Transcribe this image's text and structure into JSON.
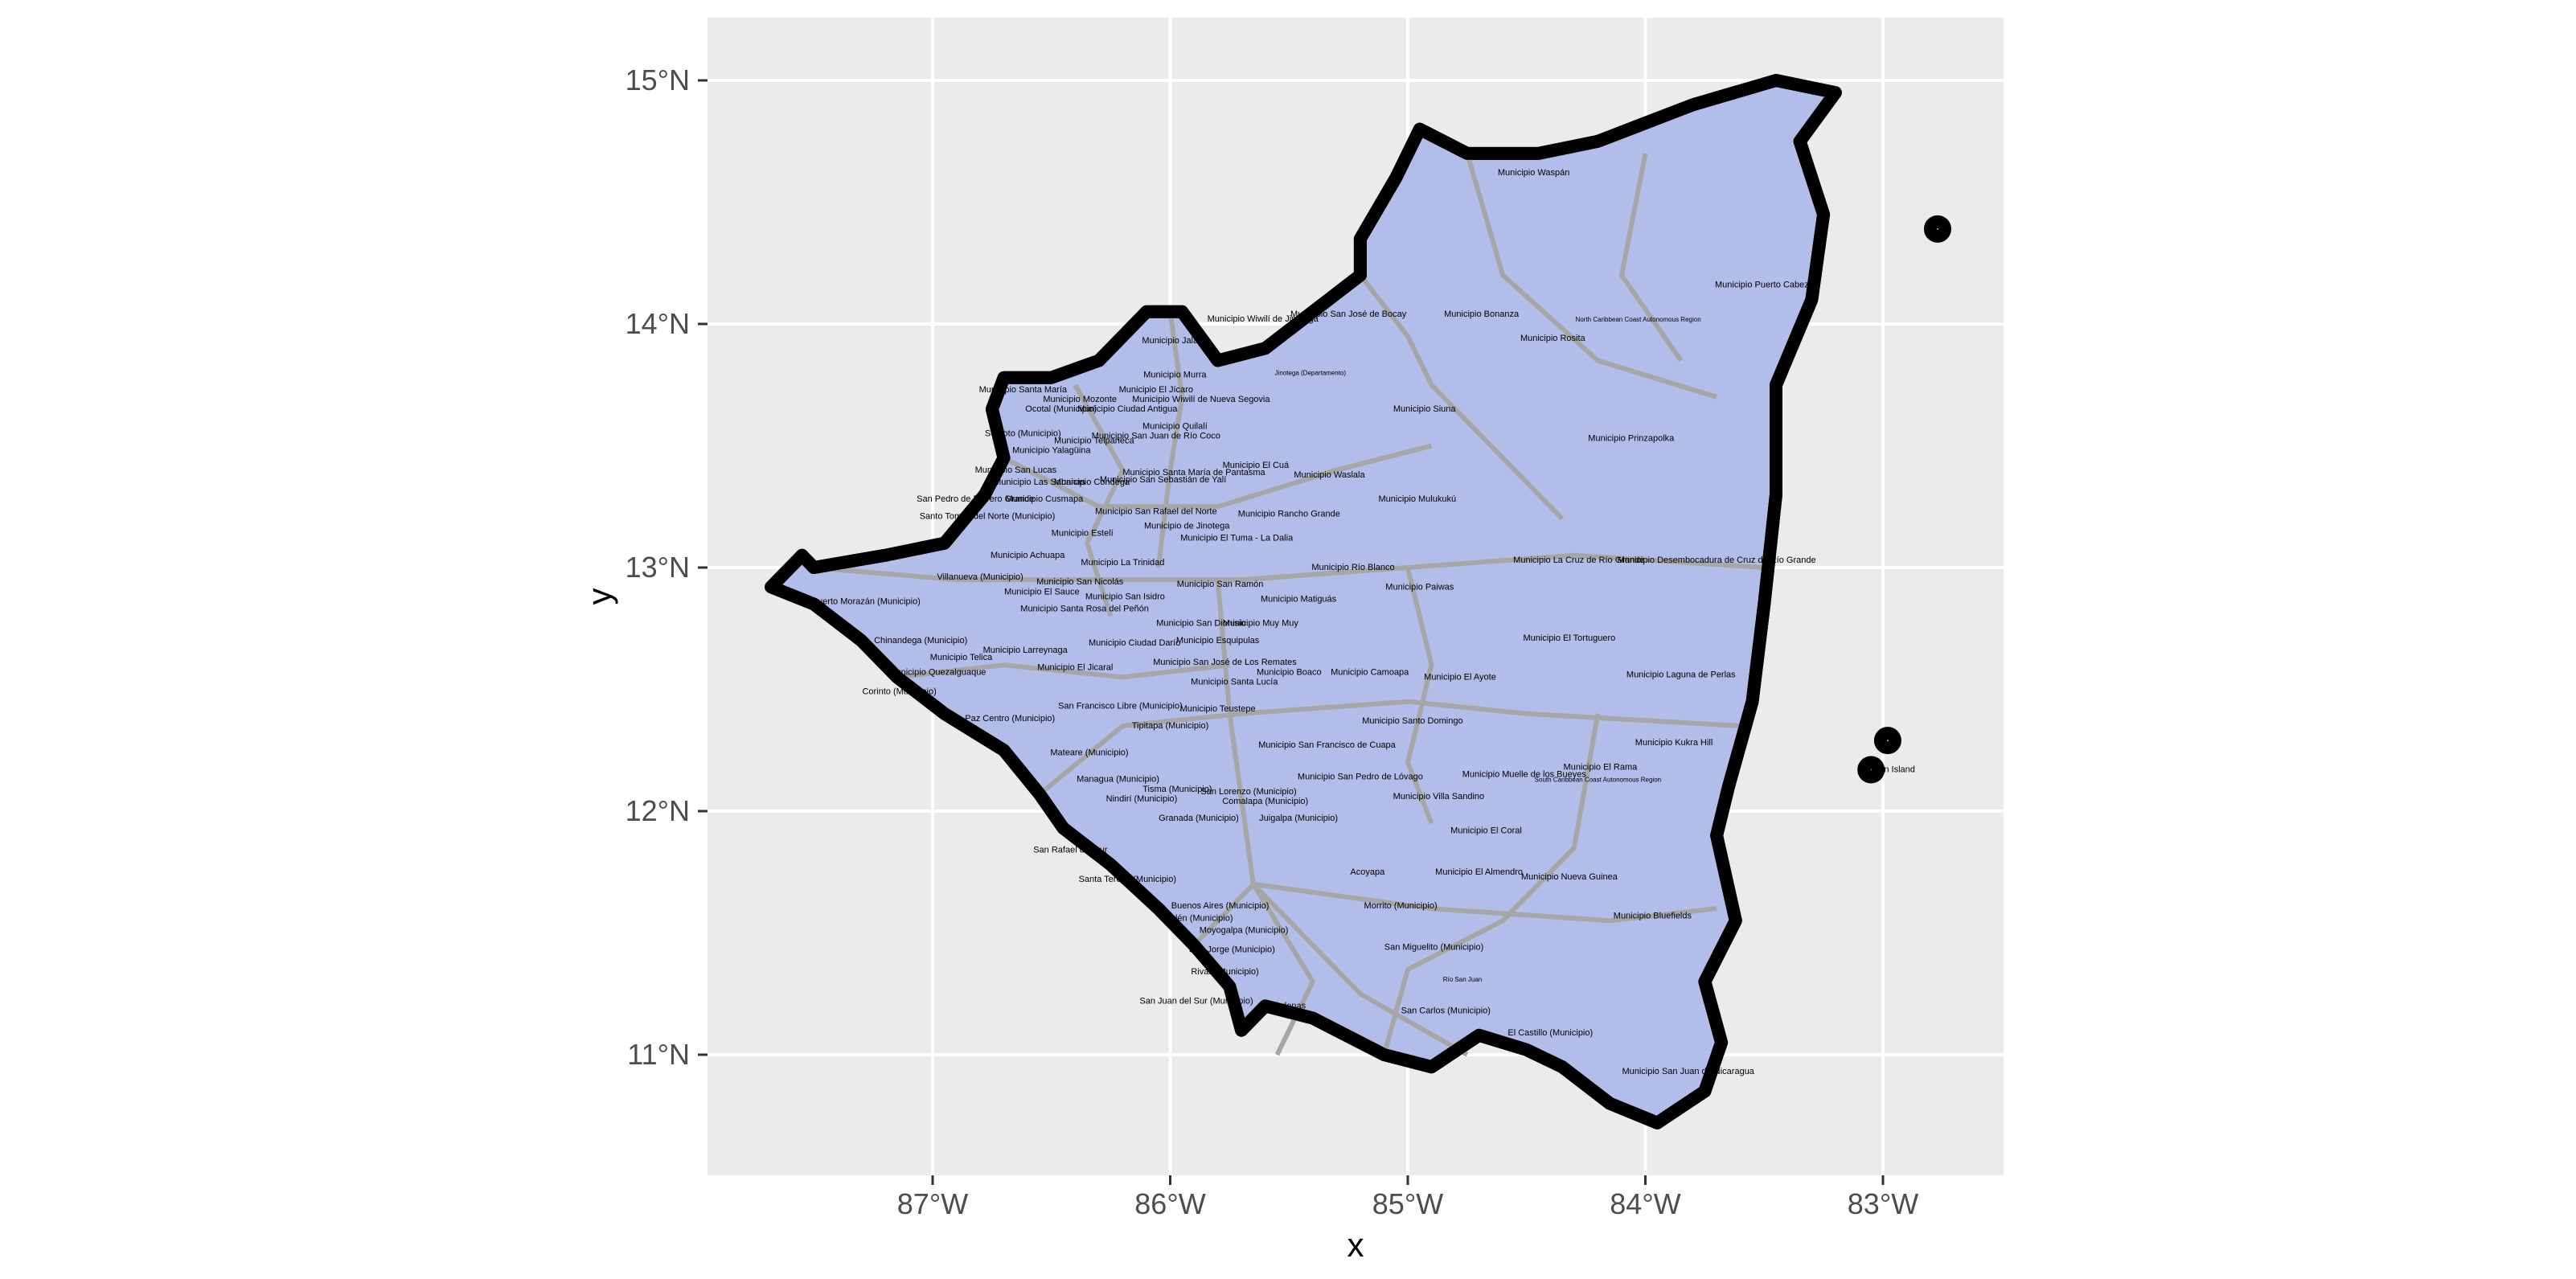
{
  "chart": {
    "xlabel": "x",
    "ylabel": "y",
    "x_ticks": [
      "87°W",
      "86°W",
      "85°W",
      "84°W",
      "83°W"
    ],
    "y_ticks": [
      "15°N",
      "14°N",
      "13°N",
      "12°N",
      "11°N"
    ],
    "panel_color": "#ebebeb",
    "land_color": "#b3bdea",
    "border_color": "#a6a6a6",
    "outline_color": "#000000"
  },
  "chart_data": {
    "type": "map",
    "xlabel": "x",
    "ylabel": "y",
    "xlim": [
      -87.93,
      -82.57
    ],
    "ylim": [
      10.51,
      15.25
    ],
    "x_ticks": [
      -87,
      -86,
      -85,
      -84,
      -83
    ],
    "y_ticks": [
      15,
      14,
      13,
      12,
      11
    ],
    "grid": true,
    "labels": [
      {
        "text": "Municipio Waspán",
        "lon": -84.47,
        "lat": 14.61
      },
      {
        "text": "Municipio Puerto Cabezas",
        "lon": -83.49,
        "lat": 14.15
      },
      {
        "text": "Municipio San José de Bocay",
        "lon": -85.25,
        "lat": 14.03
      },
      {
        "text": "Municipio Bonanza",
        "lon": -84.69,
        "lat": 14.03
      },
      {
        "text": "North Caribbean Coast Autonomous Region",
        "lon": -84.03,
        "lat": 14.01,
        "small": true
      },
      {
        "text": "Municipio Rosita",
        "lon": -84.39,
        "lat": 13.93
      },
      {
        "text": "Municipio Wiwilí de Jinotega",
        "lon": -85.61,
        "lat": 14.01
      },
      {
        "text": "Jinotega (Departamento)",
        "lon": -85.41,
        "lat": 13.79,
        "small": true
      },
      {
        "text": "Municipio Jalapa",
        "lon": -85.98,
        "lat": 13.92
      },
      {
        "text": "Municipio Murra",
        "lon": -85.98,
        "lat": 13.78
      },
      {
        "text": "Municipio Wiwilí de Nueva Segovia",
        "lon": -85.87,
        "lat": 13.68
      },
      {
        "text": "Municipio Siuna",
        "lon": -84.93,
        "lat": 13.64
      },
      {
        "text": "Municipio Prinzapolka",
        "lon": -84.06,
        "lat": 13.52
      },
      {
        "text": "Municipio El Jícaro",
        "lon": -86.06,
        "lat": 13.72
      },
      {
        "text": "Municipio Santa María",
        "lon": -86.62,
        "lat": 13.72
      },
      {
        "text": "Municipio Mozonte",
        "lon": -86.38,
        "lat": 13.68
      },
      {
        "text": "Ocotal (Municipio)",
        "lon": -86.46,
        "lat": 13.64
      },
      {
        "text": "Municipio Ciudad Antigua",
        "lon": -86.18,
        "lat": 13.64
      },
      {
        "text": "Municipio Quilalí",
        "lon": -85.98,
        "lat": 13.57
      },
      {
        "text": "Somoto (Municipio)",
        "lon": -86.62,
        "lat": 13.54
      },
      {
        "text": "Municipio San Juan de Río Coco",
        "lon": -86.06,
        "lat": 13.53
      },
      {
        "text": "Municipio Telpaneca",
        "lon": -86.32,
        "lat": 13.51
      },
      {
        "text": "Municipio Yalagüina",
        "lon": -86.5,
        "lat": 13.47
      },
      {
        "text": "Municipio El Cuá",
        "lon": -85.64,
        "lat": 13.41
      },
      {
        "text": "Municipio San Lucas",
        "lon": -86.65,
        "lat": 13.39
      },
      {
        "text": "Municipio Waslala",
        "lon": -85.33,
        "lat": 13.37
      },
      {
        "text": "Municipio Santa María de Pantasma",
        "lon": -85.9,
        "lat": 13.38
      },
      {
        "text": "Municipio San Sebastián de Yalí",
        "lon": -86.03,
        "lat": 13.35
      },
      {
        "text": "Municipio Las Sabanas",
        "lon": -86.55,
        "lat": 13.34
      },
      {
        "text": "Municipio Condega",
        "lon": -86.33,
        "lat": 13.34
      },
      {
        "text": "Municipio Mulukukú",
        "lon": -84.96,
        "lat": 13.27
      },
      {
        "text": "San Pedro de Potrero Grande",
        "lon": -86.82,
        "lat": 13.27
      },
      {
        "text": "Municipio Cusmapa",
        "lon": -86.53,
        "lat": 13.27
      },
      {
        "text": "Santo Tomás del Norte (Municipio)",
        "lon": -86.77,
        "lat": 13.2
      },
      {
        "text": "Municipio San Rafael del Norte",
        "lon": -86.06,
        "lat": 13.22
      },
      {
        "text": "Municipio Rancho Grande",
        "lon": -85.5,
        "lat": 13.21
      },
      {
        "text": "Municipio de Jinotega",
        "lon": -85.93,
        "lat": 13.16
      },
      {
        "text": "Municipio Estelí",
        "lon": -86.37,
        "lat": 13.13
      },
      {
        "text": "Municipio El Tuma - La Dalia",
        "lon": -85.72,
        "lat": 13.11
      },
      {
        "text": "Municipio Achuapa",
        "lon": -86.6,
        "lat": 13.04
      },
      {
        "text": "Municipio La Trinidad",
        "lon": -86.2,
        "lat": 13.01
      },
      {
        "text": "Municipio La Cruz de Río Grande",
        "lon": -84.28,
        "lat": 13.02
      },
      {
        "text": "Municipio Desembocadura de Cruz de Río Grande",
        "lon": -83.7,
        "lat": 13.02
      },
      {
        "text": "Municipio Río Blanco",
        "lon": -85.23,
        "lat": 12.99
      },
      {
        "text": "Villanueva (Municipio)",
        "lon": -86.8,
        "lat": 12.95
      },
      {
        "text": "Municipio San Nicolás",
        "lon": -86.38,
        "lat": 12.93
      },
      {
        "text": "Municipio San Ramón",
        "lon": -85.79,
        "lat": 12.92
      },
      {
        "text": "Municipio Paiwas",
        "lon": -84.95,
        "lat": 12.91
      },
      {
        "text": "Municipio El Sauce",
        "lon": -86.54,
        "lat": 12.89
      },
      {
        "text": "Municipio San Isidro",
        "lon": -86.19,
        "lat": 12.87
      },
      {
        "text": "Municipio Matiguás",
        "lon": -85.46,
        "lat": 12.86
      },
      {
        "text": "Puerto Morazán (Municipio)",
        "lon": -87.28,
        "lat": 12.85
      },
      {
        "text": "Municipio Santa Rosa del Peñón",
        "lon": -86.36,
        "lat": 12.82
      },
      {
        "text": "Municipio San Dionisio",
        "lon": -85.87,
        "lat": 12.76
      },
      {
        "text": "Municipio Muy Muy",
        "lon": -85.62,
        "lat": 12.76
      },
      {
        "text": "Municipio Esquipulas",
        "lon": -85.8,
        "lat": 12.69
      },
      {
        "text": "Chinandega (Municipio)",
        "lon": -87.05,
        "lat": 12.69
      },
      {
        "text": "Municipio El Tortuguero",
        "lon": -84.32,
        "lat": 12.7
      },
      {
        "text": "Municipio Ciudad Darío",
        "lon": -86.15,
        "lat": 12.68
      },
      {
        "text": "Municipio Larreynaga",
        "lon": -86.61,
        "lat": 12.65
      },
      {
        "text": "Municipio Telica",
        "lon": -86.88,
        "lat": 12.62
      },
      {
        "text": "Municipio San José de Los Remates",
        "lon": -85.77,
        "lat": 12.6
      },
      {
        "text": "Municipio El Jicaral",
        "lon": -86.4,
        "lat": 12.58
      },
      {
        "text": "Municipio Boaco",
        "lon": -85.5,
        "lat": 12.56
      },
      {
        "text": "Municipio Camoapa",
        "lon": -85.16,
        "lat": 12.56
      },
      {
        "text": "Municipio El Ayote",
        "lon": -84.78,
        "lat": 12.54
      },
      {
        "text": "Municipio Laguna de Perlas",
        "lon": -83.85,
        "lat": 12.55
      },
      {
        "text": "Municipio Quezalguaque",
        "lon": -86.98,
        "lat": 12.56
      },
      {
        "text": "Municipio Santa Lucía",
        "lon": -85.73,
        "lat": 12.52
      },
      {
        "text": "Corinto (Municipio)",
        "lon": -87.14,
        "lat": 12.48
      },
      {
        "text": "San Francisco Libre (Municipio)",
        "lon": -86.21,
        "lat": 12.42
      },
      {
        "text": "Municipio Teustepe",
        "lon": -85.8,
        "lat": 12.41
      },
      {
        "text": "La Paz Centro (Municipio)",
        "lon": -86.7,
        "lat": 12.37
      },
      {
        "text": "Tipitapa (Municipio)",
        "lon": -86.0,
        "lat": 12.34
      },
      {
        "text": "Municipio Santo Domingo",
        "lon": -84.98,
        "lat": 12.36
      },
      {
        "text": "Municipio Kukra Hill",
        "lon": -83.88,
        "lat": 12.27
      },
      {
        "text": "Municipio San Francisco de Cuapa",
        "lon": -85.34,
        "lat": 12.26
      },
      {
        "text": "Mateare (Municipio)",
        "lon": -86.34,
        "lat": 12.23
      },
      {
        "text": "Municipio El Rama",
        "lon": -84.19,
        "lat": 12.17
      },
      {
        "text": "Municipio Muelle de los Bueyes",
        "lon": -84.51,
        "lat": 12.14
      },
      {
        "text": "Municipio San Pedro de Lóvago",
        "lon": -85.2,
        "lat": 12.13
      },
      {
        "text": "Managua (Municipio)",
        "lon": -86.22,
        "lat": 12.12
      },
      {
        "text": "South Caribbean Coast Autonomous Region",
        "lon": -84.2,
        "lat": 12.12,
        "small": true
      },
      {
        "text": "Corn Island",
        "lon": -82.96,
        "lat": 12.16
      },
      {
        "text": "Tisma (Municipio)",
        "lon": -85.97,
        "lat": 12.08
      },
      {
        "text": "San Lorenzo (Municipio)",
        "lon": -85.67,
        "lat": 12.07
      },
      {
        "text": "Municipio Villa Sandino",
        "lon": -84.87,
        "lat": 12.05
      },
      {
        "text": "Nindirí (Municipio)",
        "lon": -86.12,
        "lat": 12.04
      },
      {
        "text": "Comalapa (Municipio)",
        "lon": -85.6,
        "lat": 12.03
      },
      {
        "text": "Juigalpa (Municipio)",
        "lon": -85.46,
        "lat": 11.96
      },
      {
        "text": "Granada (Municipio)",
        "lon": -85.88,
        "lat": 11.96
      },
      {
        "text": "Municipio El Coral",
        "lon": -84.67,
        "lat": 11.91
      },
      {
        "text": "San Rafael del Sur",
        "lon": -86.42,
        "lat": 11.83
      },
      {
        "text": "Acoyapa",
        "lon": -85.17,
        "lat": 11.74
      },
      {
        "text": "Municipio El Almendro",
        "lon": -84.7,
        "lat": 11.74
      },
      {
        "text": "Municipio Nueva Guinea",
        "lon": -84.32,
        "lat": 11.72
      },
      {
        "text": "Santa Teresa (Municipio)",
        "lon": -86.18,
        "lat": 11.71
      },
      {
        "text": "Buenos Aires (Municipio)",
        "lon": -85.79,
        "lat": 11.6
      },
      {
        "text": "Morrito (Municipio)",
        "lon": -85.03,
        "lat": 11.6
      },
      {
        "text": "Belén (Municipio)",
        "lon": -85.88,
        "lat": 11.55
      },
      {
        "text": "Municipio Bluefields",
        "lon": -83.97,
        "lat": 11.56
      },
      {
        "text": "Moyogalpa (Municipio)",
        "lon": -85.69,
        "lat": 11.5
      },
      {
        "text": "San Miguelito (Municipio)",
        "lon": -84.89,
        "lat": 11.43
      },
      {
        "text": "San Jorge (Municipio)",
        "lon": -85.74,
        "lat": 11.42
      },
      {
        "text": "Rivas (Municipio)",
        "lon": -85.77,
        "lat": 11.33
      },
      {
        "text": "Río San Juan",
        "lon": -84.77,
        "lat": 11.3,
        "small": true
      },
      {
        "text": "Cárdenas",
        "lon": -85.51,
        "lat": 11.19
      },
      {
        "text": "San Carlos (Municipio)",
        "lon": -84.84,
        "lat": 11.17
      },
      {
        "text": "San Juan del Sur (Municipio)",
        "lon": -85.89,
        "lat": 11.21
      },
      {
        "text": "El Castillo (Municipio)",
        "lon": -84.4,
        "lat": 11.08
      },
      {
        "text": "Municipio San Juan de Nicaragua",
        "lon": -83.82,
        "lat": 10.92
      }
    ]
  }
}
